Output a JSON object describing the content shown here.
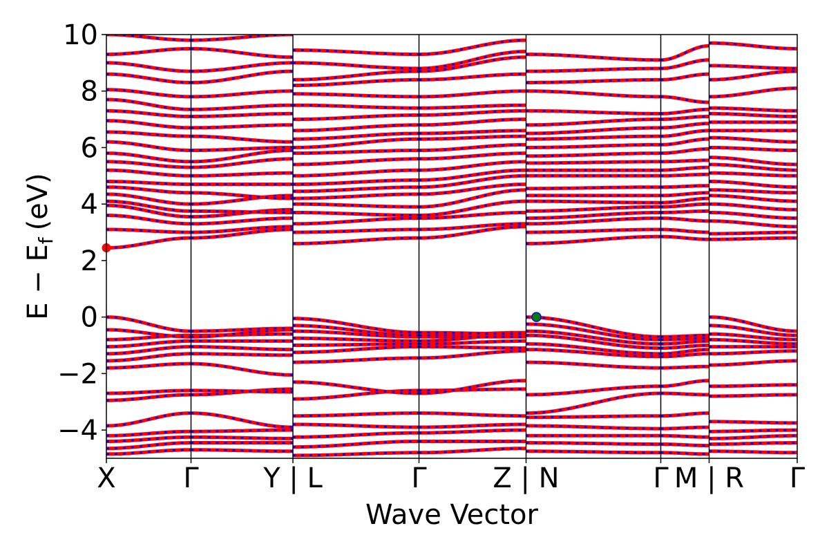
{
  "chart_data": {
    "type": "line",
    "title": "",
    "xlabel": "Wave Vector",
    "ylabel_main": "E − E",
    "ylabel_sub": "f",
    "ylabel_unit": "(eV)",
    "ylim": [
      -5,
      10
    ],
    "yticks": [
      {
        "value": 10,
        "label": "10"
      },
      {
        "value": 8,
        "label": "8"
      },
      {
        "value": 6,
        "label": "6"
      },
      {
        "value": 4,
        "label": "4"
      },
      {
        "value": 2,
        "label": "2"
      },
      {
        "value": 0,
        "label": "0"
      },
      {
        "value": -2,
        "label": "−2"
      },
      {
        "value": -4,
        "label": "−4"
      }
    ],
    "kpath": [
      {
        "label": "X",
        "x": 0.0
      },
      {
        "label": "Γ",
        "x": 0.1225
      },
      {
        "label": "Y | L",
        "x": 0.27
      },
      {
        "label": "Γ",
        "x": 0.4525
      },
      {
        "label": "Z | N",
        "x": 0.6075
      },
      {
        "label": "Γ",
        "x": 0.8025
      },
      {
        "label": "M | R",
        "x": 0.8725
      },
      {
        "label": "Γ",
        "x": 1.0
      }
    ],
    "xlim": [
      0.0,
      1.0
    ],
    "grid": false,
    "series_colors": {
      "spin_up": "#ff0000",
      "spin_down": "#0000ff"
    },
    "valence_max": {
      "x": 0.6225,
      "y": 0.0,
      "color": "#008000"
    },
    "conduction_min": {
      "x": 0.0,
      "y": 2.45,
      "color": "#ff0000"
    },
    "segments": [
      {
        "x0": 0.0,
        "x1": 0.1225,
        "bands": [
          [
            -4.85,
            -4.7
          ],
          [
            -4.65,
            -4.45
          ],
          [
            -4.4,
            -4.25
          ],
          [
            -4.2,
            -4.05
          ],
          [
            -3.85,
            -3.4
          ],
          [
            -2.95,
            -2.75
          ],
          [
            -2.7,
            -2.6
          ],
          [
            -1.8,
            -1.65
          ],
          [
            -1.55,
            -1.3
          ],
          [
            -1.3,
            -1.05
          ],
          [
            -1.05,
            -0.85
          ],
          [
            -0.8,
            -0.65
          ],
          [
            -0.45,
            -0.7
          ],
          [
            0.0,
            -0.5
          ],
          [
            2.45,
            2.8
          ],
          [
            3.1,
            3.0
          ],
          [
            3.6,
            3.3
          ],
          [
            3.95,
            3.55
          ],
          [
            4.1,
            3.75
          ],
          [
            4.35,
            4.0
          ],
          [
            4.6,
            4.4
          ],
          [
            4.8,
            4.7
          ],
          [
            5.2,
            5.0
          ],
          [
            5.5,
            5.3
          ],
          [
            5.8,
            5.5
          ],
          [
            6.2,
            5.9
          ],
          [
            6.55,
            6.4
          ],
          [
            6.95,
            6.7
          ],
          [
            7.3,
            7.1
          ],
          [
            7.7,
            7.35
          ],
          [
            8.05,
            7.8
          ],
          [
            8.6,
            8.3
          ],
          [
            9.0,
            8.7
          ],
          [
            9.3,
            9.5
          ],
          [
            10.0,
            9.8
          ]
        ]
      },
      {
        "x0": 0.1225,
        "x1": 0.27,
        "bands": [
          [
            -4.7,
            -4.75
          ],
          [
            -4.45,
            -4.45
          ],
          [
            -4.25,
            -4.3
          ],
          [
            -4.05,
            -4.0
          ],
          [
            -3.4,
            -3.9
          ],
          [
            -2.75,
            -2.55
          ],
          [
            -2.6,
            -2.65
          ],
          [
            -1.65,
            -2.05
          ],
          [
            -1.3,
            -1.35
          ],
          [
            -1.05,
            -1.15
          ],
          [
            -0.85,
            -0.85
          ],
          [
            -0.65,
            -0.6
          ],
          [
            -0.7,
            -0.45
          ],
          [
            -0.5,
            -0.4
          ],
          [
            2.8,
            3.1
          ],
          [
            3.0,
            3.2
          ],
          [
            3.3,
            3.5
          ],
          [
            3.55,
            3.8
          ],
          [
            3.75,
            3.7
          ],
          [
            4.0,
            4.3
          ],
          [
            4.4,
            4.2
          ],
          [
            4.7,
            4.7
          ],
          [
            5.0,
            5.1
          ],
          [
            5.3,
            5.6
          ],
          [
            5.5,
            5.9
          ],
          [
            5.9,
            6.0
          ],
          [
            6.4,
            6.2
          ],
          [
            6.7,
            6.8
          ],
          [
            7.1,
            7.2
          ],
          [
            7.35,
            7.5
          ],
          [
            7.8,
            8.0
          ],
          [
            8.3,
            8.7
          ],
          [
            8.7,
            9.0
          ],
          [
            9.5,
            9.2
          ],
          [
            9.8,
            10.0
          ]
        ]
      },
      {
        "x0": 0.27,
        "x1": 0.4525,
        "bands": [
          [
            -4.9,
            -4.8
          ],
          [
            -4.6,
            -4.4
          ],
          [
            -4.25,
            -4.1
          ],
          [
            -3.8,
            -3.9
          ],
          [
            -3.5,
            -3.4
          ],
          [
            -2.9,
            -2.6
          ],
          [
            -2.3,
            -2.7
          ],
          [
            -1.6,
            -1.45
          ],
          [
            -1.25,
            -1.05
          ],
          [
            -1.0,
            -0.95
          ],
          [
            -0.75,
            -0.85
          ],
          [
            -0.5,
            -0.7
          ],
          [
            -0.3,
            -0.65
          ],
          [
            -0.05,
            -0.55
          ],
          [
            2.6,
            2.8
          ],
          [
            3.0,
            3.1
          ],
          [
            3.3,
            3.5
          ],
          [
            3.7,
            3.6
          ],
          [
            4.0,
            3.9
          ],
          [
            4.2,
            4.35
          ],
          [
            4.45,
            4.6
          ],
          [
            4.7,
            4.85
          ],
          [
            5.0,
            5.2
          ],
          [
            5.4,
            5.6
          ],
          [
            5.8,
            5.9
          ],
          [
            6.0,
            6.3
          ],
          [
            6.3,
            6.5
          ],
          [
            6.6,
            6.8
          ],
          [
            7.0,
            7.15
          ],
          [
            7.5,
            7.4
          ],
          [
            7.9,
            7.8
          ],
          [
            8.2,
            8.4
          ],
          [
            8.4,
            8.7
          ],
          [
            9.0,
            8.8
          ],
          [
            9.45,
            9.3
          ]
        ]
      },
      {
        "x0": 0.4525,
        "x1": 0.6075,
        "bands": [
          [
            -4.8,
            -4.65
          ],
          [
            -4.4,
            -4.4
          ],
          [
            -4.1,
            -4.0
          ],
          [
            -3.9,
            -3.8
          ],
          [
            -3.4,
            -3.5
          ],
          [
            -2.6,
            -2.55
          ],
          [
            -2.7,
            -2.25
          ],
          [
            -1.45,
            -1.2
          ],
          [
            -1.05,
            -1.1
          ],
          [
            -0.95,
            -0.85
          ],
          [
            -0.85,
            -0.6
          ],
          [
            -0.7,
            -0.7
          ],
          [
            -0.65,
            -0.55
          ],
          [
            -0.55,
            -0.6
          ],
          [
            2.8,
            3.2
          ],
          [
            3.1,
            3.3
          ],
          [
            3.5,
            3.7
          ],
          [
            3.6,
            4.1
          ],
          [
            3.9,
            4.5
          ],
          [
            4.35,
            4.7
          ],
          [
            4.6,
            5.0
          ],
          [
            4.85,
            5.2
          ],
          [
            5.2,
            5.5
          ],
          [
            5.6,
            5.8
          ],
          [
            5.9,
            6.1
          ],
          [
            6.3,
            6.4
          ],
          [
            6.5,
            6.6
          ],
          [
            6.8,
            7.0
          ],
          [
            7.15,
            7.3
          ],
          [
            7.4,
            7.5
          ],
          [
            7.8,
            8.0
          ],
          [
            8.4,
            8.6
          ],
          [
            8.7,
            9.2
          ],
          [
            8.8,
            9.4
          ],
          [
            9.3,
            9.8
          ]
        ]
      },
      {
        "x0": 0.6075,
        "x1": 0.8025,
        "bands": [
          [
            -4.75,
            -4.8
          ],
          [
            -4.45,
            -4.5
          ],
          [
            -4.2,
            -4.2
          ],
          [
            -3.85,
            -3.95
          ],
          [
            -3.55,
            -3.5
          ],
          [
            -3.4,
            -2.7
          ],
          [
            -2.75,
            -2.45
          ],
          [
            -1.6,
            -1.8
          ],
          [
            -1.15,
            -1.4
          ],
          [
            -0.95,
            -1.3
          ],
          [
            -0.65,
            -1.1
          ],
          [
            -0.5,
            -0.95
          ],
          [
            -0.25,
            -0.8
          ],
          [
            0.0,
            -0.7
          ],
          [
            2.6,
            2.85
          ],
          [
            3.0,
            3.1
          ],
          [
            3.3,
            3.5
          ],
          [
            3.5,
            3.7
          ],
          [
            3.75,
            3.9
          ],
          [
            4.1,
            4.05
          ],
          [
            4.3,
            4.3
          ],
          [
            4.55,
            4.6
          ],
          [
            5.0,
            5.0
          ],
          [
            5.2,
            5.2
          ],
          [
            5.45,
            5.5
          ],
          [
            5.7,
            5.8
          ],
          [
            6.0,
            6.1
          ],
          [
            6.3,
            6.4
          ],
          [
            6.5,
            6.7
          ],
          [
            6.8,
            7.0
          ],
          [
            7.3,
            7.2
          ],
          [
            8.0,
            7.8
          ],
          [
            8.3,
            8.4
          ],
          [
            8.7,
            8.8
          ],
          [
            9.3,
            9.1
          ]
        ]
      },
      {
        "x0": 0.8025,
        "x1": 0.8725,
        "bands": [
          [
            -4.8,
            -4.85
          ],
          [
            -4.5,
            -4.55
          ],
          [
            -4.2,
            -4.25
          ],
          [
            -3.95,
            -3.9
          ],
          [
            -3.5,
            -3.4
          ],
          [
            -2.7,
            -2.75
          ],
          [
            -2.45,
            -2.25
          ],
          [
            -1.8,
            -1.75
          ],
          [
            -1.4,
            -1.3
          ],
          [
            -1.3,
            -1.15
          ],
          [
            -1.1,
            -1.0
          ],
          [
            -0.95,
            -0.85
          ],
          [
            -0.8,
            -0.75
          ],
          [
            -0.7,
            -0.65
          ],
          [
            2.85,
            2.75
          ],
          [
            3.1,
            3.0
          ],
          [
            3.5,
            3.4
          ],
          [
            3.7,
            3.75
          ],
          [
            3.9,
            4.0
          ],
          [
            4.05,
            4.2
          ],
          [
            4.3,
            4.4
          ],
          [
            4.6,
            4.65
          ],
          [
            5.0,
            5.05
          ],
          [
            5.2,
            5.3
          ],
          [
            5.5,
            5.55
          ],
          [
            5.8,
            5.95
          ],
          [
            6.1,
            6.3
          ],
          [
            6.4,
            6.6
          ],
          [
            6.7,
            6.85
          ],
          [
            7.0,
            7.1
          ],
          [
            7.2,
            7.35
          ],
          [
            7.8,
            7.6
          ],
          [
            8.4,
            8.6
          ],
          [
            8.8,
            9.1
          ],
          [
            9.1,
            9.6
          ]
        ]
      },
      {
        "x0": 0.8725,
        "x1": 1.0,
        "bands": [
          [
            -4.75,
            -4.8
          ],
          [
            -4.5,
            -4.45
          ],
          [
            -4.3,
            -4.2
          ],
          [
            -4.05,
            -4.0
          ],
          [
            -3.7,
            -3.75
          ],
          [
            -2.8,
            -2.75
          ],
          [
            -2.45,
            -2.4
          ],
          [
            -1.7,
            -1.55
          ],
          [
            -1.3,
            -1.2
          ],
          [
            -1.05,
            -1.05
          ],
          [
            -0.8,
            -0.95
          ],
          [
            -0.6,
            -0.8
          ],
          [
            -0.3,
            -0.65
          ],
          [
            0.0,
            -0.5
          ],
          [
            2.75,
            2.8
          ],
          [
            2.95,
            3.0
          ],
          [
            3.4,
            3.2
          ],
          [
            3.7,
            3.5
          ],
          [
            4.0,
            3.8
          ],
          [
            4.3,
            4.1
          ],
          [
            4.5,
            4.4
          ],
          [
            4.8,
            4.6
          ],
          [
            5.1,
            5.0
          ],
          [
            5.4,
            5.2
          ],
          [
            5.65,
            5.4
          ],
          [
            6.0,
            5.9
          ],
          [
            6.35,
            6.2
          ],
          [
            6.6,
            6.6
          ],
          [
            6.9,
            6.9
          ],
          [
            7.2,
            7.1
          ],
          [
            7.4,
            7.3
          ],
          [
            7.8,
            8.1
          ],
          [
            8.4,
            8.7
          ],
          [
            8.9,
            8.8
          ],
          [
            9.7,
            9.5
          ]
        ]
      }
    ]
  }
}
